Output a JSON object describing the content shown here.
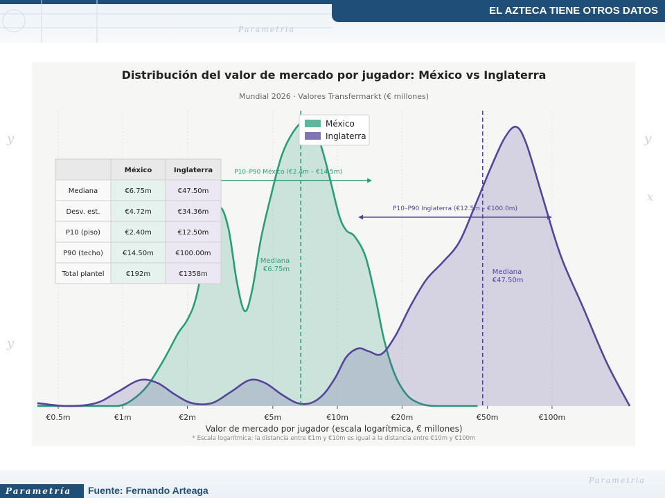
{
  "header": {
    "banner": "EL AZTECA TIENE OTROS DATOS"
  },
  "footer": {
    "logo": "Parametría",
    "source": "Fuente: Fernando Arteaga"
  },
  "background": {
    "watermark": "Parametria"
  },
  "colors": {
    "mexico": "#2a9d78",
    "england": "#55459a",
    "brand": "#1f4e79"
  },
  "chart_data": {
    "type": "area",
    "title": "Distribución del valor de mercado por jugador: México vs Inglaterra",
    "subtitle": "Mundial 2026 · Valores Transfermarkt (€ millones)",
    "xlabel": "Valor de mercado por jugador (escala logarítmica, € millones)",
    "footnote": "* Escala logarítmica: la distancia entre €1m y €10m es igual a la distancia entre €10m y €100m",
    "x_scale": "log",
    "xlim": [
      0.4,
      230
    ],
    "ylim": [
      0,
      1.05
    ],
    "grid": "x",
    "legend_position": "top-center",
    "x_ticks": [
      {
        "value": 0.5,
        "label": "€0.5m"
      },
      {
        "value": 1,
        "label": "€1m"
      },
      {
        "value": 2,
        "label": "€2m"
      },
      {
        "value": 5,
        "label": "€5m"
      },
      {
        "value": 10,
        "label": "€10m"
      },
      {
        "value": 20,
        "label": "€20m"
      },
      {
        "value": 50,
        "label": "€50m"
      },
      {
        "value": 100,
        "label": "€100m"
      }
    ],
    "series": [
      {
        "name": "México",
        "color": "#2a9d78",
        "x": [
          0.4,
          0.55,
          0.75,
          0.95,
          1.1,
          1.3,
          1.55,
          1.8,
          2.0,
          2.2,
          2.5,
          2.8,
          3.1,
          3.4,
          3.7,
          4.0,
          4.4,
          4.9,
          5.5,
          6.2,
          7.0,
          7.8,
          8.5,
          9.3,
          10.2,
          11.0,
          12.0,
          13.5,
          15.0,
          16.5,
          18.5,
          21.0,
          24.0,
          28.0,
          35.0,
          45.0
        ],
        "y": [
          0.0,
          0.0,
          0.0,
          0.0,
          0.02,
          0.07,
          0.16,
          0.25,
          0.3,
          0.38,
          0.58,
          0.69,
          0.62,
          0.43,
          0.33,
          0.4,
          0.58,
          0.73,
          0.87,
          0.95,
          0.99,
          0.97,
          0.89,
          0.78,
          0.66,
          0.61,
          0.59,
          0.52,
          0.38,
          0.23,
          0.11,
          0.04,
          0.01,
          0.0,
          0.0,
          0.0
        ]
      },
      {
        "name": "Inglaterra",
        "color": "#55459a",
        "x": [
          0.4,
          0.55,
          0.75,
          0.95,
          1.2,
          1.45,
          1.75,
          2.1,
          2.6,
          3.2,
          3.9,
          4.6,
          5.5,
          6.5,
          7.5,
          8.6,
          9.8,
          11.0,
          12.5,
          14.0,
          16.0,
          18.5,
          22.0,
          26.0,
          31.0,
          37.0,
          44.0,
          52.0,
          60.0,
          68.0,
          76.0,
          90.0,
          110.0,
          140.0,
          180.0,
          230.0
        ],
        "y": [
          0.01,
          0.0,
          0.01,
          0.05,
          0.09,
          0.08,
          0.04,
          0.01,
          0.01,
          0.05,
          0.09,
          0.08,
          0.04,
          0.01,
          0.01,
          0.04,
          0.1,
          0.17,
          0.2,
          0.19,
          0.18,
          0.24,
          0.35,
          0.44,
          0.5,
          0.57,
          0.7,
          0.83,
          0.93,
          0.97,
          0.91,
          0.73,
          0.52,
          0.34,
          0.15,
          0.0
        ]
      }
    ],
    "median_lines": [
      {
        "series": "México",
        "value": 6.75,
        "label": "Mediana\n€6.75m"
      },
      {
        "series": "Inglaterra",
        "value": 47.5,
        "label": "Mediana\n€47.50m"
      }
    ],
    "ranges": [
      {
        "series": "México",
        "from": 2.4,
        "to": 14.5,
        "label": "P10–P90 México  (€2.4m – €14.5m)"
      },
      {
        "series": "Inglaterra",
        "from": 12.5,
        "to": 100.0,
        "label": "P10–P90 Inglaterra  (€12.5m – €100.0m)"
      }
    ],
    "table": {
      "columns": [
        "",
        "México",
        "Inglaterra"
      ],
      "rows": [
        [
          "Mediana",
          "€6.75m",
          "€47.50m"
        ],
        [
          "Desv. est.",
          "€4.72m",
          "€34.36m"
        ],
        [
          "P10 (piso)",
          "€2.40m",
          "€12.50m"
        ],
        [
          "P90 (techo)",
          "€14.50m",
          "€100.00m"
        ],
        [
          "Total plantel",
          "€192m",
          "€1358m"
        ]
      ]
    }
  }
}
